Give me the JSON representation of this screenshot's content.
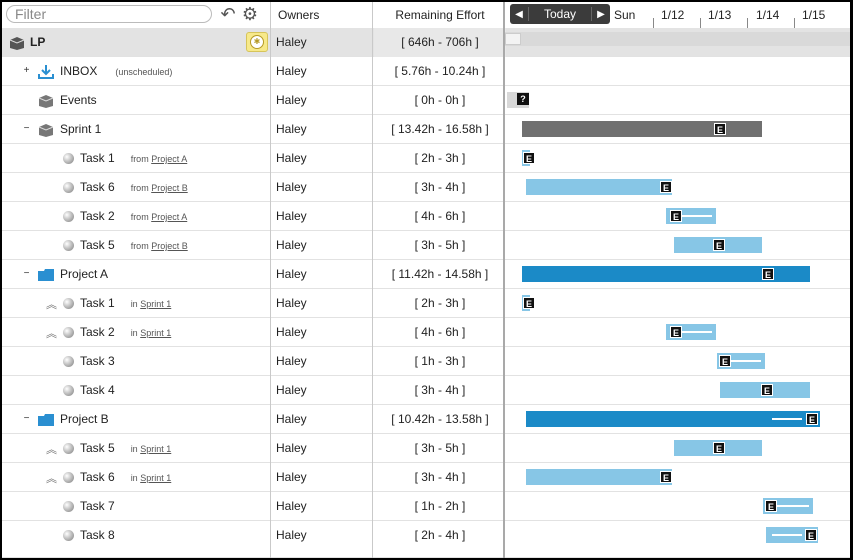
{
  "header": {
    "filter_placeholder": "Filter",
    "owners_label": "Owners",
    "effort_label": "Remaining Effort",
    "today_label": "Today",
    "prev_label": "◀",
    "next_label": "▶",
    "ticks": [
      "Sun",
      "1/12",
      "1/13",
      "1/14",
      "1/15"
    ]
  },
  "colors": {
    "gray_bar": "#707070",
    "light_bar": "#87c6e6",
    "dark_bar": "#1b8ac7"
  },
  "rows": [
    {
      "name": "LP",
      "owner": "Haley",
      "effort": "[ 646h - 706h ]"
    },
    {
      "name": "INBOX",
      "note": "(unscheduled)",
      "owner": "Haley",
      "effort": "[ 5.76h - 10.24h ]"
    },
    {
      "name": "Events",
      "owner": "Haley",
      "effort": "[ 0h - 0h ]",
      "marker": "?"
    },
    {
      "name": "Sprint 1",
      "owner": "Haley",
      "effort": "[ 13.42h - 16.58h ]",
      "marker": "E"
    },
    {
      "name": "Task 1",
      "from_label": "from",
      "link": "Project A",
      "owner": "Haley",
      "effort": "[ 2h - 3h ]",
      "marker": "E"
    },
    {
      "name": "Task 6",
      "from_label": "from",
      "link": "Project B",
      "owner": "Haley",
      "effort": "[ 3h - 4h ]",
      "marker": "E"
    },
    {
      "name": "Task 2",
      "from_label": "from",
      "link": "Project A",
      "owner": "Haley",
      "effort": "[ 4h - 6h ]",
      "marker": "E"
    },
    {
      "name": "Task 5",
      "from_label": "from",
      "link": "Project B",
      "owner": "Haley",
      "effort": "[ 3h - 5h ]",
      "marker": "E"
    },
    {
      "name": "Project A",
      "owner": "Haley",
      "effort": "[ 11.42h - 14.58h ]",
      "marker": "E"
    },
    {
      "name": "Task 1",
      "from_label": "in",
      "link": "Sprint 1",
      "owner": "Haley",
      "effort": "[ 2h - 3h ]",
      "marker": "E"
    },
    {
      "name": "Task 2",
      "from_label": "in",
      "link": "Sprint 1",
      "owner": "Haley",
      "effort": "[ 4h - 6h ]",
      "marker": "E"
    },
    {
      "name": "Task 3",
      "owner": "Haley",
      "effort": "[ 1h - 3h ]",
      "marker": "E"
    },
    {
      "name": "Task 4",
      "owner": "Haley",
      "effort": "[ 3h - 4h ]",
      "marker": "E"
    },
    {
      "name": "Project B",
      "owner": "Haley",
      "effort": "[ 10.42h - 13.58h ]",
      "marker": "E"
    },
    {
      "name": "Task 5",
      "from_label": "in",
      "link": "Sprint 1",
      "owner": "Haley",
      "effort": "[ 3h - 5h ]",
      "marker": "E"
    },
    {
      "name": "Task 6",
      "from_label": "in",
      "link": "Sprint 1",
      "owner": "Haley",
      "effort": "[ 3h - 4h ]",
      "marker": "E"
    },
    {
      "name": "Task 7",
      "owner": "Haley",
      "effort": "[ 1h - 2h ]",
      "marker": "E"
    },
    {
      "name": "Task 8",
      "owner": "Haley",
      "effort": "[ 2h - 4h ]",
      "marker": "E"
    }
  ]
}
